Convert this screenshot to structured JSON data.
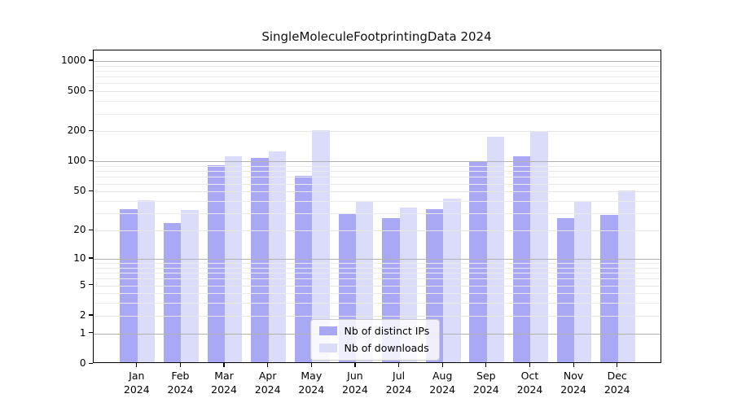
{
  "chart_data": {
    "type": "bar",
    "title": "SingleMoleculeFootprintingData 2024",
    "categories": [
      "Jan",
      "Feb",
      "Mar",
      "Apr",
      "May",
      "Jun",
      "Jul",
      "Aug",
      "Sep",
      "Oct",
      "Nov",
      "Dec"
    ],
    "year_label": "2024",
    "series": [
      {
        "name": "Nb of distinct IPs",
        "color": "#a8a8f5",
        "values": [
          32,
          23,
          89,
          105,
          69,
          29,
          26,
          32,
          98,
          109,
          26,
          28
        ]
      },
      {
        "name": "Nb of downloads",
        "color": "#dbdbfa",
        "values": [
          39,
          31,
          108,
          122,
          198,
          38,
          33,
          41,
          169,
          192,
          38,
          49
        ]
      }
    ],
    "yaxis": {
      "scale": "log(v+1)",
      "ticks": [
        0,
        1,
        2,
        5,
        10,
        20,
        50,
        100,
        200,
        500,
        1000
      ],
      "minor_ticks": [
        3,
        4,
        6,
        7,
        8,
        9,
        30,
        40,
        60,
        70,
        80,
        90,
        300,
        400,
        600,
        700,
        800,
        900
      ],
      "ylim": [
        0,
        1285
      ]
    },
    "xlabel": "",
    "ylabel": "",
    "grid": true,
    "gridlines_over_bars": true,
    "legend_position": "bottom-center",
    "colors": {
      "distinct_ips": "#a8a8f5",
      "downloads": "#dbdbfa",
      "grid_major": "#b2b2b2",
      "grid_minor": "#ebebeb"
    }
  }
}
